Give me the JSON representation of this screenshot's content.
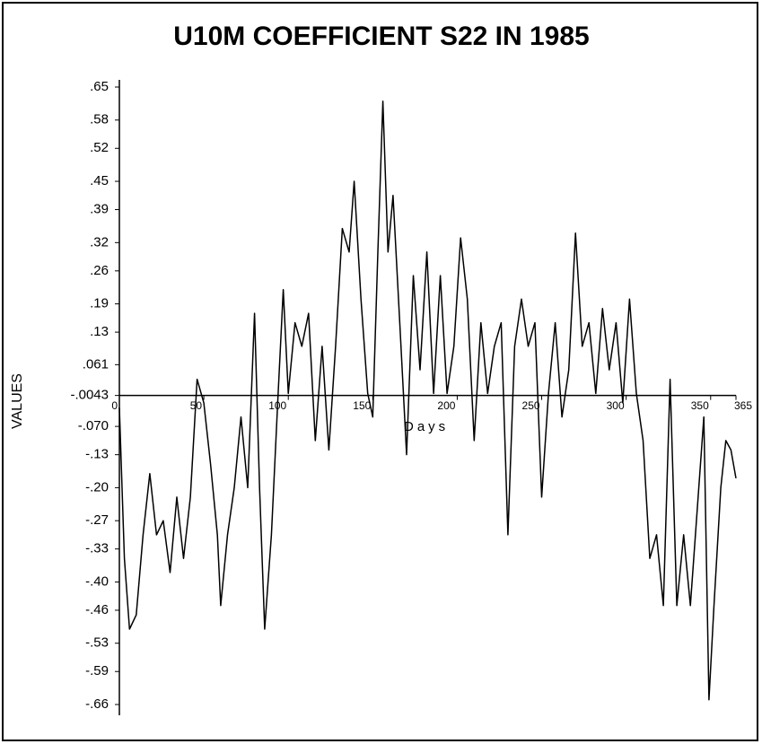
{
  "chart_data": {
    "type": "line",
    "title": "U10M COEFFICIENT S22 IN 1985",
    "y_label": "VALUES",
    "x_label": "Days",
    "xlim": [
      0,
      365
    ],
    "xticks": [
      0,
      50,
      100,
      150,
      200,
      250,
      300,
      350,
      365
    ],
    "ylim": [
      -0.66,
      0.65
    ],
    "yticks": [
      {
        "value": 0.65,
        "label": ".65"
      },
      {
        "value": 0.58,
        "label": ".58"
      },
      {
        "value": 0.52,
        "label": ".52"
      },
      {
        "value": 0.45,
        "label": ".45"
      },
      {
        "value": 0.39,
        "label": ".39"
      },
      {
        "value": 0.32,
        "label": ".32"
      },
      {
        "value": 0.26,
        "label": ".26"
      },
      {
        "value": 0.19,
        "label": ".19"
      },
      {
        "value": 0.13,
        "label": ".13"
      },
      {
        "value": 0.061,
        "label": ".061"
      },
      {
        "value": -0.0043,
        "label": "-.0043"
      },
      {
        "value": -0.07,
        "label": "-.070"
      },
      {
        "value": -0.13,
        "label": "-.13"
      },
      {
        "value": -0.2,
        "label": "-.20"
      },
      {
        "value": -0.27,
        "label": "-.27"
      },
      {
        "value": -0.33,
        "label": "-.33"
      },
      {
        "value": -0.4,
        "label": "-.40"
      },
      {
        "value": -0.46,
        "label": "-.46"
      },
      {
        "value": -0.53,
        "label": "-.53"
      },
      {
        "value": -0.59,
        "label": "-.59"
      },
      {
        "value": -0.66,
        "label": "-.66"
      }
    ],
    "x_axis_at": -0.0043,
    "color": "#000000",
    "x": [
      0,
      3,
      6,
      10,
      14,
      18,
      22,
      26,
      30,
      34,
      38,
      42,
      46,
      50,
      54,
      58,
      60,
      64,
      68,
      72,
      76,
      80,
      83,
      86,
      90,
      94,
      97,
      100,
      104,
      108,
      112,
      116,
      120,
      124,
      128,
      132,
      136,
      139,
      143,
      147,
      150,
      153,
      156,
      159,
      162,
      166,
      170,
      174,
      178,
      182,
      186,
      190,
      194,
      198,
      202,
      206,
      210,
      214,
      218,
      222,
      226,
      230,
      234,
      238,
      242,
      246,
      250,
      254,
      258,
      262,
      266,
      270,
      274,
      278,
      282,
      286,
      290,
      294,
      298,
      302,
      306,
      310,
      314,
      318,
      322,
      326,
      330,
      334,
      338,
      342,
      346,
      349,
      352,
      356,
      359,
      362,
      365
    ],
    "values": [
      -0.03,
      -0.35,
      -0.5,
      -0.47,
      -0.3,
      -0.17,
      -0.3,
      -0.27,
      -0.38,
      -0.22,
      -0.35,
      -0.22,
      0.03,
      -0.02,
      -0.15,
      -0.3,
      -0.45,
      -0.3,
      -0.2,
      -0.05,
      -0.2,
      0.17,
      -0.2,
      -0.5,
      -0.3,
      0.0,
      0.22,
      0.0,
      0.15,
      0.1,
      0.17,
      -0.1,
      0.1,
      -0.12,
      0.1,
      0.35,
      0.3,
      0.45,
      0.2,
      0.0,
      -0.05,
      0.3,
      0.62,
      0.3,
      0.42,
      0.15,
      -0.13,
      0.25,
      0.05,
      0.3,
      0.0,
      0.25,
      0.0,
      0.1,
      0.33,
      0.2,
      -0.1,
      0.15,
      0.0,
      0.1,
      0.15,
      -0.3,
      0.1,
      0.2,
      0.1,
      0.15,
      -0.22,
      0.0,
      0.15,
      -0.05,
      0.05,
      0.34,
      0.1,
      0.15,
      0.0,
      0.18,
      0.05,
      0.15,
      -0.02,
      0.2,
      0.0,
      -0.1,
      -0.35,
      -0.3,
      -0.45,
      0.03,
      -0.45,
      -0.3,
      -0.45,
      -0.25,
      -0.05,
      -0.65,
      -0.45,
      -0.2,
      -0.1,
      -0.12,
      -0.18
    ]
  }
}
